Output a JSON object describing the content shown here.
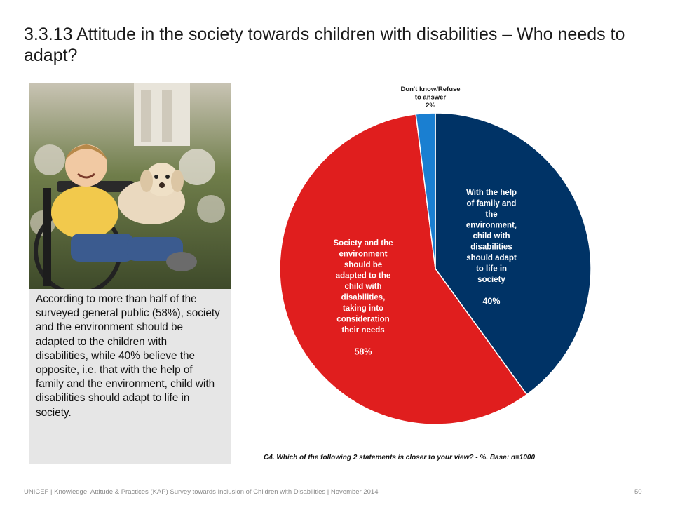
{
  "slide": {
    "title": "3.3.13 Attitude in the society towards children with disabilities – Who needs to adapt?",
    "body_text": "According to more than half of the surveyed general public (58%), society and the environment should be adapted to the children with disabilities, while 40% believe the opposite, i.e. that with the help of family and the environment, child with disabilities should adapt to life in society.",
    "question_note": "C4. Which of the following 2 statements is closer to your view? - %. Base:  n=1000",
    "footer": "UNICEF | Knowledge, Attitude & Practices (KAP) Survey towards  Inclusion of Children with Disabilities | November 2014",
    "page_number": "50"
  },
  "chart_data": {
    "type": "pie",
    "slices": [
      {
        "label_lines": [
          "With the help",
          "of family and",
          "the",
          "environment,",
          "child with",
          "disabilities",
          "should adapt",
          "to life in",
          "society"
        ],
        "value": 40,
        "value_label": "40%",
        "color": "#003366"
      },
      {
        "label_lines": [
          "Society and the",
          "environment",
          "should be",
          "adapted to the",
          "child with",
          "disabilities,",
          "taking into",
          "consideration",
          "their needs"
        ],
        "value": 58,
        "value_label": "58%",
        "color": "#e01e1e"
      },
      {
        "label_lines": [
          "Don't know/Refuse",
          "to answer"
        ],
        "value": 2,
        "value_label": "2%",
        "color": "#1a7fd1"
      }
    ]
  }
}
